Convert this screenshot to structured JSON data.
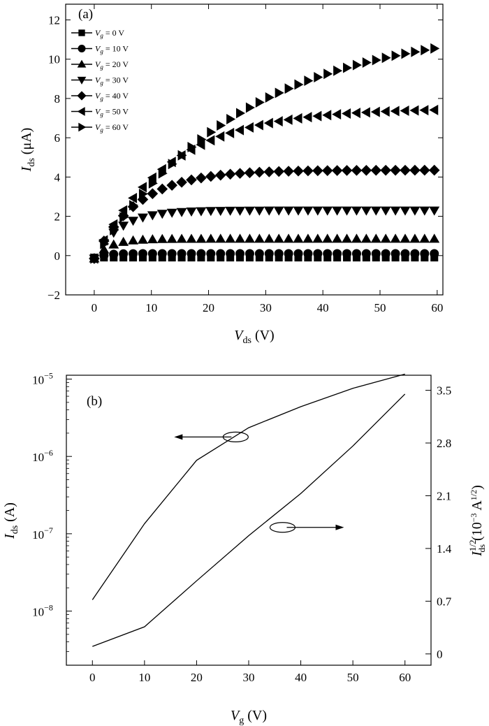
{
  "chart_data": [
    {
      "type": "scatter",
      "panel_label": "(a)",
      "xlabel_main": "V",
      "xlabel_sub": "ds",
      "xlabel_unit": " (V)",
      "ylabel_main": "I",
      "ylabel_sub": "ds",
      "ylabel_unit": " (μA)",
      "xlim": [
        -5,
        61
      ],
      "ylim": [
        -2,
        12.8
      ],
      "xticks": [
        0,
        10,
        20,
        30,
        40,
        50,
        60
      ],
      "yticks": [
        -2,
        0,
        2,
        4,
        6,
        8,
        10,
        12
      ],
      "legend_position": "top-left",
      "series": [
        {
          "name": "V_g = 0 V",
          "legend_main": "V",
          "legend_sub": "g",
          "legend_value": " = 0 V",
          "marker": "square",
          "saturation": -0.1,
          "vsat": 2
        },
        {
          "name": "V_g = 10 V",
          "legend_main": "V",
          "legend_sub": "g",
          "legend_value": " = 10 V",
          "marker": "circle",
          "saturation": 0.1,
          "vsat": 3
        },
        {
          "name": "V_g = 20 V",
          "legend_main": "V",
          "legend_sub": "g",
          "legend_value": " = 20 V",
          "marker": "triangle-up",
          "saturation": 0.85,
          "vsat": 5
        },
        {
          "name": "V_g = 30 V",
          "legend_main": "V",
          "legend_sub": "g",
          "legend_value": " = 30 V",
          "marker": "triangle-down",
          "saturation": 2.3,
          "vsat": 8
        },
        {
          "name": "V_g = 40 V",
          "legend_main": "V",
          "legend_sub": "g",
          "legend_value": " = 40 V",
          "marker": "diamond",
          "saturation": 4.35,
          "vsat": 14
        },
        {
          "name": "V_g = 50 V",
          "legend_main": "V",
          "legend_sub": "g",
          "legend_value": " = 50 V",
          "marker": "triangle-left",
          "saturation": 7.5,
          "vsat": 24
        },
        {
          "name": "V_g = 60 V",
          "legend_main": "V",
          "legend_sub": "g",
          "legend_value": " = 60 V",
          "marker": "triangle-right",
          "saturation": 11.8,
          "vsat": 48
        }
      ]
    },
    {
      "type": "line",
      "panel_label": "(b)",
      "xlabel_main": "V",
      "xlabel_sub": "g",
      "xlabel_unit": " (V)",
      "ylabel_left_main": "I",
      "ylabel_left_sub": "ds",
      "ylabel_left_unit": " (A)",
      "ylabel_right_main": "I",
      "ylabel_right_sub": "ds",
      "ylabel_right_sup": "1/2",
      "ylabel_right_unit": " (10",
      "ylabel_right_unit_sup": "−3",
      "ylabel_right_unit_tail": " A",
      "ylabel_right_unit_tail_sup": "1/2",
      "ylabel_right_close": ")",
      "xlim": [
        -5,
        65
      ],
      "y_left_scale": "log",
      "y_left_log_range": [
        -8.7,
        -4.95
      ],
      "y_right_range": [
        -0.15,
        3.7
      ],
      "xticks": [
        0,
        10,
        20,
        30,
        40,
        50,
        60
      ],
      "y_left_ticks": [
        {
          "value": 1e-05,
          "base": "10",
          "exp": "−5"
        },
        {
          "value": 1e-06,
          "base": "10",
          "exp": "−6"
        },
        {
          "value": 1e-07,
          "base": "10",
          "exp": "−7"
        },
        {
          "value": 1e-08,
          "base": "10",
          "exp": "−8"
        }
      ],
      "y_right_ticks": [
        "0",
        "0.7",
        "1.4",
        "2.1",
        "2.8",
        "3.5"
      ],
      "series": [
        {
          "name": "Ids (log, left axis)",
          "axis": "left",
          "x": [
            0,
            10,
            20,
            30,
            40,
            50,
            60
          ],
          "y": [
            1.4e-08,
            1.35e-07,
            8.9e-07,
            2.35e-06,
            4.4e-06,
            7.6e-06,
            1.16e-05
          ]
        },
        {
          "name": "Ids^1/2 (right axis)",
          "axis": "right",
          "x": [
            0,
            10,
            20,
            30,
            40,
            50,
            60
          ],
          "y": [
            0.1,
            0.36,
            0.97,
            1.57,
            2.13,
            2.76,
            3.45
          ]
        }
      ],
      "annotations": [
        {
          "x": 27.5,
          "y_right": 2.88,
          "arrow": "left"
        },
        {
          "x": 36.5,
          "y_right": 1.68,
          "arrow": "right"
        }
      ]
    }
  ]
}
